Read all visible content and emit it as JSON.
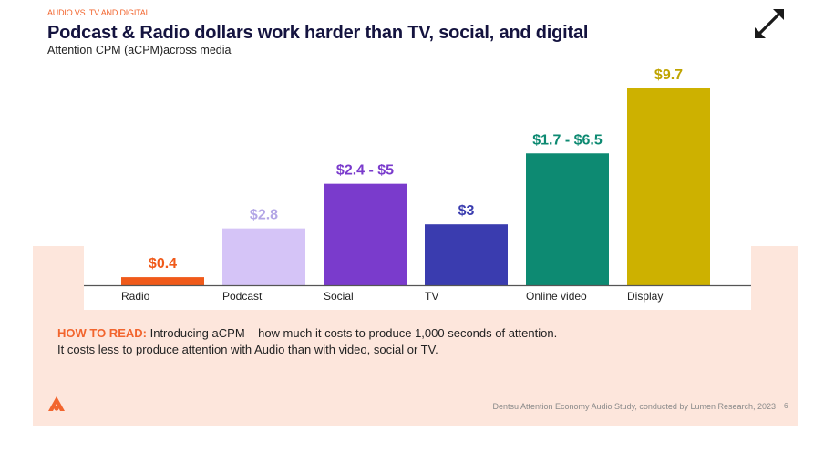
{
  "header": {
    "eyebrow": "AUDIO VS. TV AND DIGITAL",
    "title": "Podcast & Radio dollars work harder than TV, social, and digital",
    "subtitle": "Attention CPM (aCPM)across media"
  },
  "icons": {
    "expand": "expand-arrows-icon",
    "logo": "dentsu-a-logo-icon"
  },
  "colors": {
    "accent": "#f2652e",
    "panel": "#fde6dc",
    "title": "#14133f"
  },
  "chart_data": {
    "type": "bar",
    "title": "",
    "xlabel": "",
    "ylabel": "",
    "ylim": [
      0,
      10
    ],
    "grid": false,
    "legend": "none",
    "categories": [
      "Radio",
      "Podcast",
      "Social",
      "TV",
      "Online video",
      "Display"
    ],
    "values": [
      0.4,
      2.8,
      5,
      3,
      6.5,
      9.7
    ],
    "ranges": [
      null,
      null,
      [
        2.4,
        5
      ],
      null,
      [
        1.7,
        6.5
      ],
      null
    ],
    "value_labels": [
      "$0.4",
      "$2.8",
      "$2.4 - $5",
      "$3",
      "$1.7 - $6.5",
      "$9.7"
    ],
    "bar_colors": [
      "#f05a1a",
      "#d5c4f7",
      "#7a3bcc",
      "#3a3caf",
      "#0d8a72",
      "#cdb100"
    ],
    "label_colors": [
      "#f05a1a",
      "#b3a6e6",
      "#7a3bcc",
      "#3a3caf",
      "#0d8a72",
      "#bfa400"
    ]
  },
  "how_to_read": {
    "lead": "HOW TO READ:",
    "line1": " Introducing aCPM – how much it costs to produce 1,000 seconds of attention.",
    "line2": "It costs less to produce attention with Audio than with video, social or TV."
  },
  "footer": {
    "source": "Dentsu Attention Economy Audio Study, conducted by Lumen Research, 2023",
    "page_number": "6"
  }
}
